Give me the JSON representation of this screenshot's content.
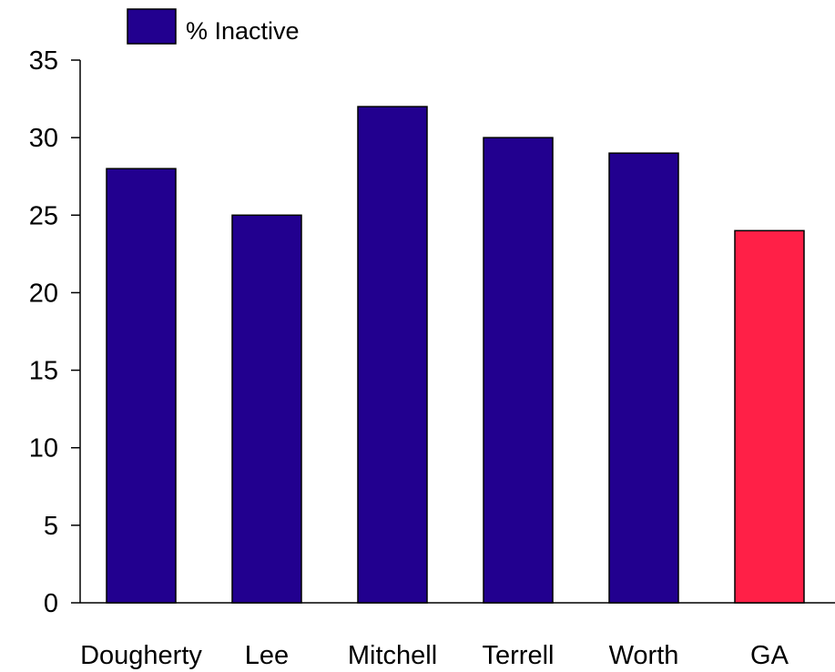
{
  "chart_data": {
    "type": "bar",
    "categories": [
      "Dougherty",
      "Lee",
      "Mitchell",
      "Terrell",
      "Worth",
      "GA"
    ],
    "series": [
      {
        "name": "% Inactive",
        "values": [
          28,
          25,
          32,
          30,
          29,
          24
        ]
      }
    ],
    "bar_colors": [
      "#22008F",
      "#22008F",
      "#22008F",
      "#22008F",
      "#22008F",
      "#FF2047"
    ],
    "ylim": [
      0,
      35
    ],
    "yticks": [
      0,
      5,
      10,
      15,
      20,
      25,
      30,
      35
    ],
    "title": "",
    "xlabel": "",
    "ylabel": "",
    "grid": false,
    "legend": {
      "placement": "top-left",
      "color": "#22008F"
    }
  }
}
